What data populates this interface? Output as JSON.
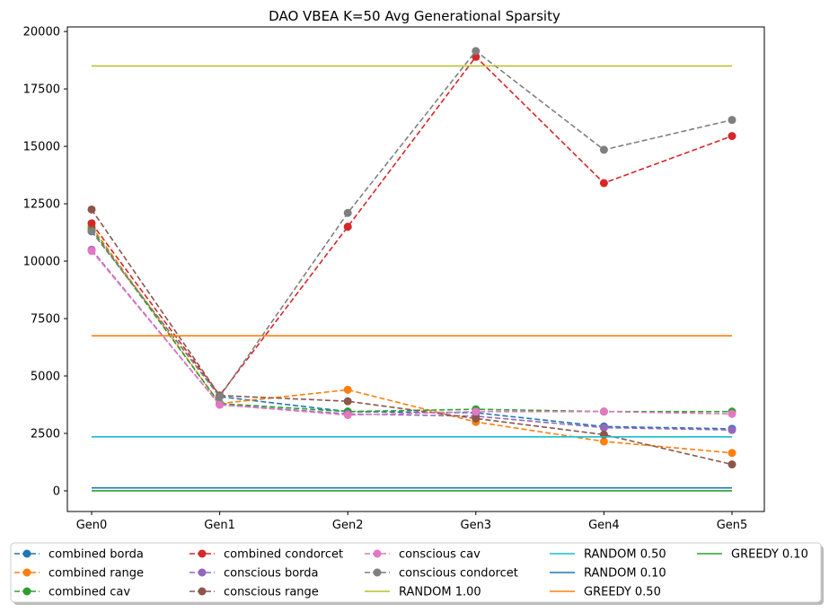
{
  "chart_data": {
    "type": "line",
    "title": "DAO VBEA K=50 Avg Generational Sparsity",
    "xlabel": "",
    "ylabel": "",
    "categories": [
      "Gen0",
      "Gen1",
      "Gen2",
      "Gen3",
      "Gen4",
      "Gen5"
    ],
    "ylim": [
      -900,
      20200
    ],
    "yticks": [
      0,
      2500,
      5000,
      7500,
      10000,
      12500,
      15000,
      17500,
      20000
    ],
    "ytick_labels": [
      "0",
      "2500",
      "5000",
      "7500",
      "10000",
      "12500",
      "15000",
      "17500",
      "20000"
    ],
    "grid": false,
    "legend_position": "bottom",
    "series": [
      {
        "name": "combined borda",
        "style": "dashed-marker",
        "color": "#1f77b4",
        "values": [
          11300,
          4100,
          3450,
          3400,
          2800,
          2700
        ]
      },
      {
        "name": "combined range",
        "style": "dashed-marker",
        "color": "#ff7f0e",
        "values": [
          11500,
          3800,
          4400,
          3000,
          2150,
          1650
        ]
      },
      {
        "name": "combined cav",
        "style": "dashed-marker",
        "color": "#2ca02c",
        "values": [
          11400,
          3800,
          3450,
          3550,
          3450,
          3450
        ]
      },
      {
        "name": "combined condorcet",
        "style": "dashed-marker",
        "color": "#d62728",
        "values": [
          11650,
          4150,
          11500,
          18900,
          13400,
          15450
        ]
      },
      {
        "name": "conscious borda",
        "style": "dashed-marker",
        "color": "#9467bd",
        "values": [
          10500,
          3750,
          3350,
          3250,
          2750,
          2650
        ]
      },
      {
        "name": "conscious range",
        "style": "dashed-marker",
        "color": "#8c564b",
        "values": [
          12250,
          4150,
          3900,
          3150,
          2450,
          1150
        ]
      },
      {
        "name": "conscious cav",
        "style": "dashed-marker",
        "color": "#e377c2",
        "values": [
          10450,
          3750,
          3300,
          3450,
          3450,
          3350
        ]
      },
      {
        "name": "conscious condorcet",
        "style": "dashed-marker",
        "color": "#7f7f7f",
        "values": [
          11300,
          4100,
          12100,
          19150,
          14850,
          16150
        ]
      },
      {
        "name": "RANDOM 1.00",
        "style": "solid",
        "color": "#bcbd22",
        "values": [
          18500,
          18500,
          18500,
          18500,
          18500,
          18500
        ]
      },
      {
        "name": "RANDOM 0.50",
        "style": "solid",
        "color": "#17becf",
        "values": [
          2350,
          2350,
          2350,
          2350,
          2350,
          2350
        ]
      },
      {
        "name": "RANDOM 0.10",
        "style": "solid",
        "color": "#1f77b4",
        "values": [
          130,
          130,
          130,
          130,
          130,
          130
        ]
      },
      {
        "name": "GREEDY 0.50",
        "style": "solid",
        "color": "#ff7f0e",
        "values": [
          6750,
          6750,
          6750,
          6750,
          6750,
          6750
        ]
      },
      {
        "name": "GREEDY 0.10",
        "style": "solid",
        "color": "#2ca02c",
        "values": [
          0,
          0,
          0,
          0,
          0,
          0
        ]
      }
    ]
  }
}
